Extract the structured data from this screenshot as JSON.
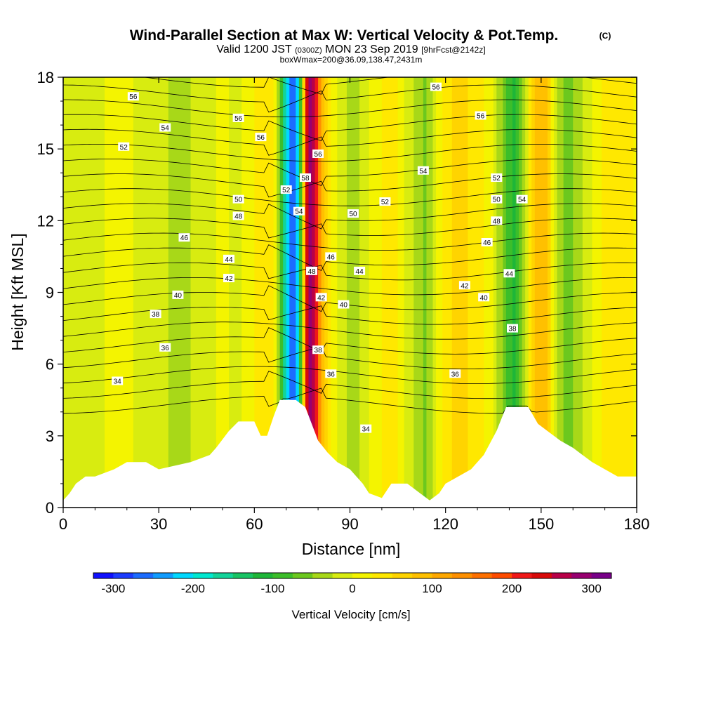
{
  "chart_data": {
    "type": "heatmap",
    "title": "Wind-Parallel Section at Max W: Vertical Velocity & Pot.Temp.",
    "title_mark": "(C)",
    "subtitle_prefix": "Valid 1200 JST",
    "subtitle_small": "(0300Z)",
    "subtitle_main": "MON 23 Sep 2019",
    "subtitle_tag": "[9hrFcst@2142z]",
    "subtitle_box": "boxWmax=200@36.09,138.47,2431m",
    "xlabel": "Distance [nm]",
    "ylabel": "Height [Kft MSL]",
    "xlim": [
      0,
      180
    ],
    "ylim": [
      0,
      18
    ],
    "x_ticks": [
      "0",
      "30",
      "60",
      "90",
      "120",
      "150",
      "180"
    ],
    "y_ticks": [
      "0",
      "3",
      "6",
      "9",
      "12",
      "15",
      "18"
    ],
    "colorbar": {
      "label": "Vertical Velocity [cm/s]",
      "tick_labels": [
        "-300",
        "-200",
        "-100",
        "0",
        "100",
        "200",
        "300"
      ],
      "tick_values": [
        -300,
        -200,
        -100,
        0,
        100,
        200,
        300
      ],
      "min": -325,
      "max": 325,
      "colors": [
        "#1010ff",
        "#1c3cff",
        "#1c6cff",
        "#109cff",
        "#00d8ff",
        "#00e8d0",
        "#12d49a",
        "#18c464",
        "#1eb638",
        "#3cbe2a",
        "#6cc81e",
        "#a8d818",
        "#d8ec10",
        "#f4f400",
        "#ffe800",
        "#ffd400",
        "#ffc000",
        "#ffa800",
        "#ff9000",
        "#ff7000",
        "#ff4c00",
        "#f01818",
        "#d80a0a",
        "#b80048",
        "#980070",
        "#780088"
      ]
    },
    "velocity_columns": [
      {
        "x": 0,
        "w": -10
      },
      {
        "x": 8,
        "w": -5
      },
      {
        "x": 18,
        "w": 5
      },
      {
        "x": 30,
        "w": -10
      },
      {
        "x": 35,
        "w": -40
      },
      {
        "x": 42,
        "w": -20
      },
      {
        "x": 50,
        "w": 5
      },
      {
        "x": 55,
        "w": -10
      },
      {
        "x": 58,
        "w": 10
      },
      {
        "x": 63,
        "w": 40
      },
      {
        "x": 66,
        "w": 50
      },
      {
        "x": 68,
        "w": -60
      },
      {
        "x": 70,
        "w": -200
      },
      {
        "x": 72,
        "w": -300
      },
      {
        "x": 74,
        "w": -180
      },
      {
        "x": 76,
        "w": 150
      },
      {
        "x": 77,
        "w": 300
      },
      {
        "x": 79,
        "w": 260
      },
      {
        "x": 81,
        "w": 100
      },
      {
        "x": 84,
        "w": 30
      },
      {
        "x": 88,
        "w": -20
      },
      {
        "x": 92,
        "w": -40
      },
      {
        "x": 97,
        "w": 10
      },
      {
        "x": 104,
        "w": 40
      },
      {
        "x": 110,
        "w": -30
      },
      {
        "x": 114,
        "w": -60
      },
      {
        "x": 118,
        "w": 20
      },
      {
        "x": 124,
        "w": 60
      },
      {
        "x": 130,
        "w": 40
      },
      {
        "x": 135,
        "w": 0
      },
      {
        "x": 139,
        "w": -70
      },
      {
        "x": 142,
        "w": -110
      },
      {
        "x": 145,
        "w": -30
      },
      {
        "x": 148,
        "w": 80
      },
      {
        "x": 151,
        "w": 100
      },
      {
        "x": 155,
        "w": -30
      },
      {
        "x": 158,
        "w": -70
      },
      {
        "x": 162,
        "w": -30
      },
      {
        "x": 168,
        "w": 20
      },
      {
        "x": 174,
        "w": 40
      },
      {
        "x": 180,
        "w": 20
      }
    ],
    "terrain": [
      {
        "x": 0,
        "h": 0.3
      },
      {
        "x": 2,
        "h": 0.6
      },
      {
        "x": 4,
        "h": 1.0
      },
      {
        "x": 7,
        "h": 1.3
      },
      {
        "x": 10,
        "h": 1.3
      },
      {
        "x": 16,
        "h": 1.6
      },
      {
        "x": 20,
        "h": 1.9
      },
      {
        "x": 26,
        "h": 1.9
      },
      {
        "x": 30,
        "h": 1.6
      },
      {
        "x": 40,
        "h": 1.9
      },
      {
        "x": 46,
        "h": 2.2
      },
      {
        "x": 48,
        "h": 2.5
      },
      {
        "x": 52,
        "h": 3.2
      },
      {
        "x": 55,
        "h": 3.6
      },
      {
        "x": 60,
        "h": 3.6
      },
      {
        "x": 62,
        "h": 3.0
      },
      {
        "x": 64,
        "h": 3.0
      },
      {
        "x": 66,
        "h": 3.8
      },
      {
        "x": 68,
        "h": 4.5
      },
      {
        "x": 73,
        "h": 4.5
      },
      {
        "x": 76,
        "h": 4.2
      },
      {
        "x": 78,
        "h": 3.5
      },
      {
        "x": 80,
        "h": 2.8
      },
      {
        "x": 83,
        "h": 2.3
      },
      {
        "x": 86,
        "h": 1.9
      },
      {
        "x": 90,
        "h": 1.6
      },
      {
        "x": 94,
        "h": 1.0
      },
      {
        "x": 96,
        "h": 0.6
      },
      {
        "x": 100,
        "h": 0.4
      },
      {
        "x": 103,
        "h": 1.0
      },
      {
        "x": 108,
        "h": 1.0
      },
      {
        "x": 112,
        "h": 0.6
      },
      {
        "x": 115,
        "h": 0.3
      },
      {
        "x": 118,
        "h": 0.6
      },
      {
        "x": 120,
        "h": 1.0
      },
      {
        "x": 124,
        "h": 1.3
      },
      {
        "x": 128,
        "h": 1.6
      },
      {
        "x": 132,
        "h": 2.2
      },
      {
        "x": 136,
        "h": 3.2
      },
      {
        "x": 139,
        "h": 4.2
      },
      {
        "x": 146,
        "h": 4.2
      },
      {
        "x": 149,
        "h": 3.5
      },
      {
        "x": 152,
        "h": 3.2
      },
      {
        "x": 156,
        "h": 2.8
      },
      {
        "x": 160,
        "h": 2.5
      },
      {
        "x": 163,
        "h": 2.2
      },
      {
        "x": 166,
        "h": 1.9
      },
      {
        "x": 170,
        "h": 1.6
      },
      {
        "x": 174,
        "h": 1.3
      },
      {
        "x": 180,
        "h": 1.3
      }
    ],
    "theta_levels": [
      32,
      33,
      34,
      35,
      36,
      37,
      38,
      39,
      40,
      41,
      42,
      43,
      44,
      45,
      46,
      47,
      48,
      49,
      50,
      51,
      52,
      53,
      54,
      55,
      56,
      57,
      58
    ],
    "contour_labels": [
      {
        "x": 22,
        "y": 17.2,
        "text": "56"
      },
      {
        "x": 32,
        "y": 15.9,
        "text": "54"
      },
      {
        "x": 19,
        "y": 15.1,
        "text": "52"
      },
      {
        "x": 55,
        "y": 16.3,
        "text": "56"
      },
      {
        "x": 62,
        "y": 15.5,
        "text": "56"
      },
      {
        "x": 55,
        "y": 12.9,
        "text": "50"
      },
      {
        "x": 55,
        "y": 12.2,
        "text": "48"
      },
      {
        "x": 38,
        "y": 11.3,
        "text": "46"
      },
      {
        "x": 52,
        "y": 10.4,
        "text": "44"
      },
      {
        "x": 52,
        "y": 9.6,
        "text": "42"
      },
      {
        "x": 36,
        "y": 8.9,
        "text": "40"
      },
      {
        "x": 29,
        "y": 8.1,
        "text": "38"
      },
      {
        "x": 32,
        "y": 6.7,
        "text": "36"
      },
      {
        "x": 17,
        "y": 5.3,
        "text": "34"
      },
      {
        "x": 70,
        "y": 13.3,
        "text": "52"
      },
      {
        "x": 74,
        "y": 12.4,
        "text": "54"
      },
      {
        "x": 76,
        "y": 13.8,
        "text": "58"
      },
      {
        "x": 80,
        "y": 14.8,
        "text": "56"
      },
      {
        "x": 78,
        "y": 9.9,
        "text": "48"
      },
      {
        "x": 84,
        "y": 10.5,
        "text": "46"
      },
      {
        "x": 93,
        "y": 9.9,
        "text": "44"
      },
      {
        "x": 81,
        "y": 8.8,
        "text": "42"
      },
      {
        "x": 88,
        "y": 8.5,
        "text": "40"
      },
      {
        "x": 80,
        "y": 6.6,
        "text": "38"
      },
      {
        "x": 84,
        "y": 5.6,
        "text": "36"
      },
      {
        "x": 95,
        "y": 3.3,
        "text": "34"
      },
      {
        "x": 91,
        "y": 12.3,
        "text": "50"
      },
      {
        "x": 101,
        "y": 12.8,
        "text": "52"
      },
      {
        "x": 113,
        "y": 14.1,
        "text": "54"
      },
      {
        "x": 117,
        "y": 17.6,
        "text": "56"
      },
      {
        "x": 131,
        "y": 16.4,
        "text": "56"
      },
      {
        "x": 136,
        "y": 13.8,
        "text": "52"
      },
      {
        "x": 136,
        "y": 12.9,
        "text": "50"
      },
      {
        "x": 136,
        "y": 12.0,
        "text": "48"
      },
      {
        "x": 133,
        "y": 11.1,
        "text": "46"
      },
      {
        "x": 140,
        "y": 9.8,
        "text": "44"
      },
      {
        "x": 126,
        "y": 9.3,
        "text": "42"
      },
      {
        "x": 132,
        "y": 8.8,
        "text": "40"
      },
      {
        "x": 141,
        "y": 7.5,
        "text": "38"
      },
      {
        "x": 123,
        "y": 5.6,
        "text": "36"
      },
      {
        "x": 144,
        "y": 12.9,
        "text": "54"
      }
    ]
  }
}
